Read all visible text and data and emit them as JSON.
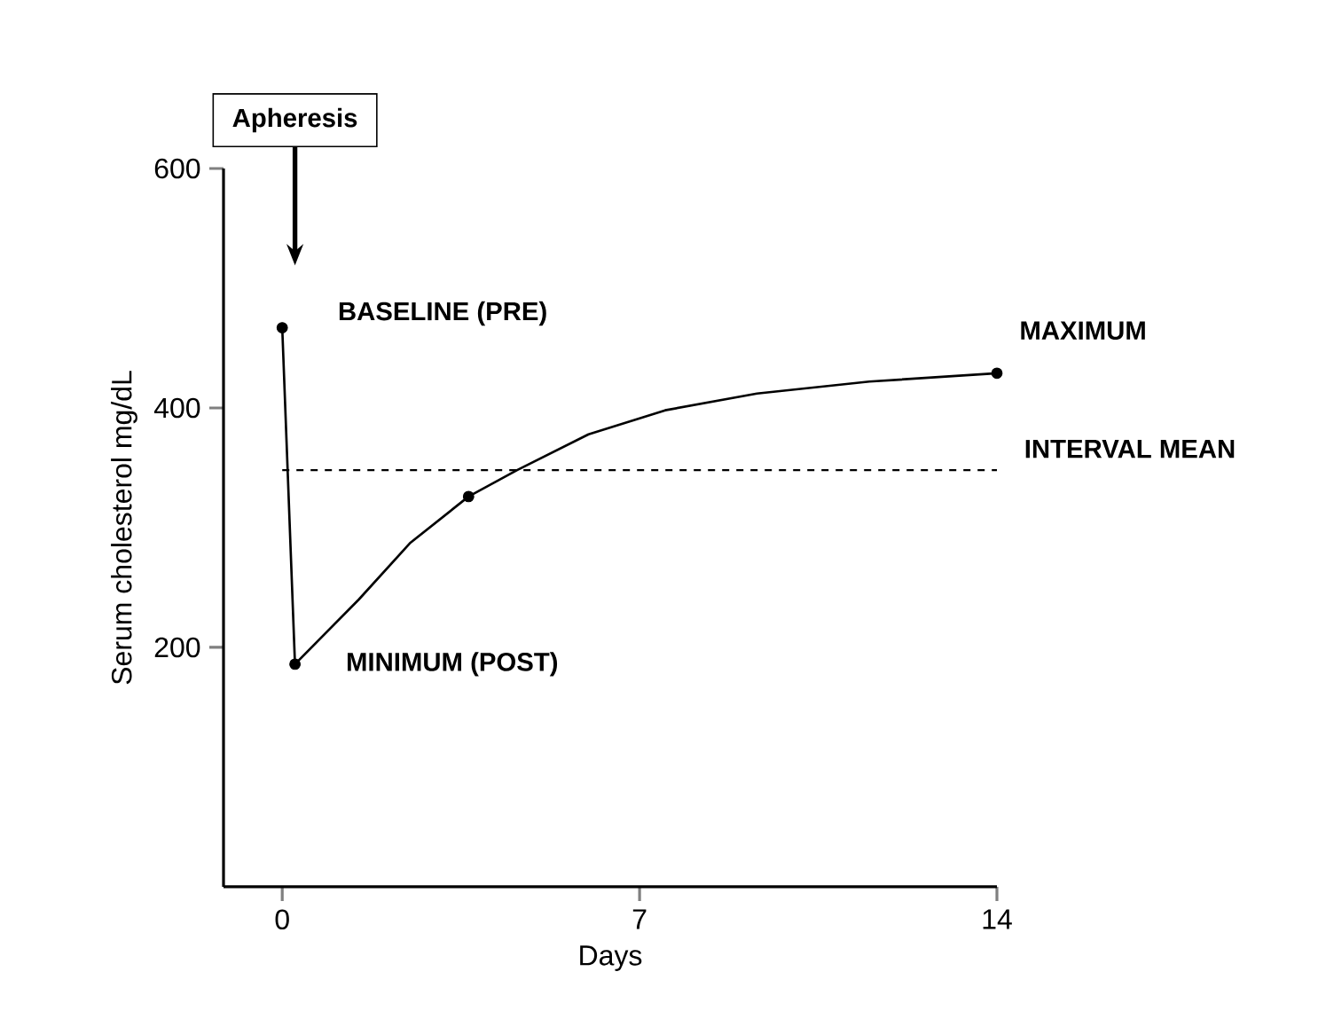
{
  "chart_data": {
    "type": "line",
    "xlabel": "Days",
    "ylabel": "Serum cholesterol mg/dL",
    "xlim": [
      -1.15,
      14
    ],
    "xticks": [
      0,
      7,
      14
    ],
    "ylim": [
      0,
      600
    ],
    "yticks": [
      200,
      400,
      600
    ],
    "grid": false,
    "series": [
      {
        "type": "line",
        "color": "#000000",
        "marker": "none",
        "line_style": "solid",
        "x": [
          0,
          0.25,
          1.5,
          2.5,
          3.65,
          4.6,
          6,
          7.5,
          9.3,
          11.5,
          14
        ],
        "values": [
          467,
          186,
          240,
          287,
          326,
          348,
          378,
          398,
          412,
          422,
          429
        ]
      },
      {
        "type": "scatter",
        "color": "#000000",
        "marker": "circle",
        "x": [
          0,
          0.25,
          3.65,
          14
        ],
        "values": [
          467,
          186,
          326,
          429
        ]
      }
    ],
    "ref_lines": [
      {
        "axis": "y",
        "value": 348,
        "label": "INTERVAL MEAN",
        "line_style": "dashed",
        "color": "#000000"
      }
    ],
    "annotations": [
      "Apheresis",
      {
        "text": "BASELINE (PRE)",
        "x": 0,
        "y": 467
      },
      {
        "text": "MINIMUM (POST)",
        "x": 0.25,
        "y": 186
      },
      {
        "text": "MAXIMUM",
        "x": 14,
        "y": 429
      }
    ]
  }
}
